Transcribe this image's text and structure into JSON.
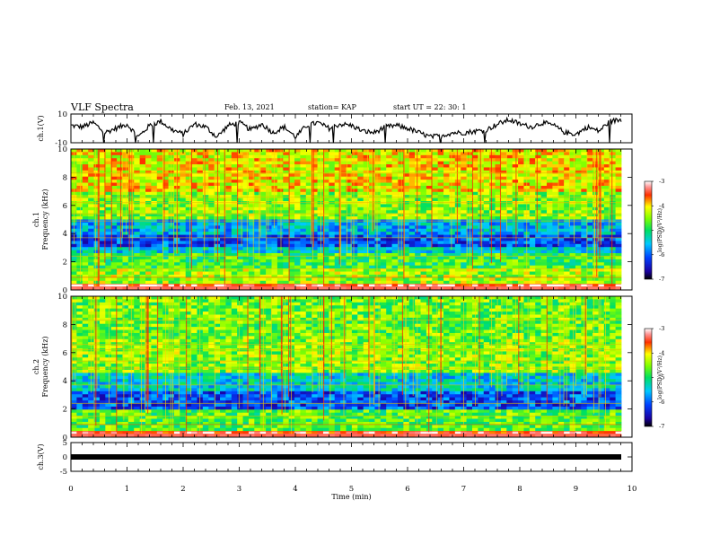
{
  "header": {
    "title": "VLF Spectra",
    "date": "Feb. 13, 2021",
    "station": "station= KAP",
    "start": "start UT = 22: 30: 1"
  },
  "chart_data": [
    {
      "type": "line",
      "panel": "ch1-waveform",
      "ylabel": "ch.1(V)",
      "ylim": [
        -10,
        10
      ],
      "yticks": [
        "10",
        "-10"
      ],
      "xlim": [
        0,
        9.8
      ],
      "series": [
        {
          "x": [
            0,
            0.2,
            0.4,
            0.6,
            0.8,
            1.0,
            1.2,
            1.4,
            1.6,
            1.8,
            2.0,
            2.2,
            2.4,
            2.6,
            2.8,
            3.0,
            3.2,
            3.4,
            3.6,
            3.8,
            4.0,
            4.2,
            4.4,
            4.6,
            4.8,
            5.0,
            5.2,
            5.4,
            5.6,
            5.8,
            6.0,
            6.2,
            6.4,
            6.6,
            6.8,
            7.0,
            7.2,
            7.4,
            7.6,
            7.8,
            8.0,
            8.2,
            8.4,
            8.6,
            8.8,
            9.0,
            9.2,
            9.4,
            9.6,
            9.8
          ],
          "values": [
            2,
            1,
            4,
            -3,
            0,
            3,
            -6,
            2,
            5,
            -1,
            -4,
            3,
            1,
            -6,
            2,
            4,
            -1,
            3,
            -3,
            1,
            -6,
            2,
            4,
            0,
            3,
            2,
            -2,
            -3,
            1,
            2,
            0,
            -3,
            -6,
            -5,
            -3,
            -3,
            -2,
            -1,
            3,
            6,
            3,
            1,
            4,
            2,
            -3,
            -4,
            1,
            -2,
            5,
            6
          ]
        }
      ]
    },
    {
      "type": "heatmap",
      "panel": "ch1-spectrogram",
      "ylabel": "ch.1\nFrequency (kHz)",
      "ylim": [
        0,
        10
      ],
      "yticks": [
        "10",
        "8",
        "6",
        "4",
        "2",
        "0"
      ],
      "xlim": [
        0,
        9.8
      ],
      "colorbar": {
        "label": "log(PSD)(V²/Hz)",
        "range": [
          -7,
          -3
        ],
        "ticks": [
          "-3",
          "-4",
          "-5",
          "-6",
          "-7"
        ]
      },
      "frequency_bands_log_psd": [
        {
          "f": [
            0.0,
            0.5
          ],
          "v": -3.2
        },
        {
          "f": [
            0.5,
            1.5
          ],
          "v": -4.4
        },
        {
          "f": [
            1.5,
            2.5
          ],
          "v": -4.8
        },
        {
          "f": [
            2.5,
            3.0
          ],
          "v": -5.4
        },
        {
          "f": [
            3.0,
            4.0
          ],
          "v": -6.1
        },
        {
          "f": [
            4.0,
            5.0
          ],
          "v": -5.6
        },
        {
          "f": [
            5.0,
            7.0
          ],
          "v": -4.5
        },
        {
          "f": [
            7.0,
            10.0
          ],
          "v": -4.1
        }
      ]
    },
    {
      "type": "heatmap",
      "panel": "ch2-spectrogram",
      "ylabel": "ch.2\nFrequency (kHz)",
      "ylim": [
        0,
        10
      ],
      "yticks": [
        "10",
        "8",
        "6",
        "4",
        "2",
        "0"
      ],
      "xlim": [
        0,
        9.8
      ],
      "colorbar": {
        "label": "log(PSD)(V²/Hz)",
        "range": [
          -7,
          -3
        ],
        "ticks": [
          "-3",
          "-4",
          "-5",
          "-6",
          "-7"
        ]
      },
      "frequency_bands_log_psd": [
        {
          "f": [
            0.0,
            0.5
          ],
          "v": -3.3
        },
        {
          "f": [
            0.5,
            2.0
          ],
          "v": -4.7
        },
        {
          "f": [
            2.0,
            3.2
          ],
          "v": -6.1
        },
        {
          "f": [
            3.2,
            4.5
          ],
          "v": -5.4
        },
        {
          "f": [
            4.5,
            7.0
          ],
          "v": -4.5
        },
        {
          "f": [
            7.0,
            10.0
          ],
          "v": -4.6
        }
      ]
    },
    {
      "type": "line",
      "panel": "ch3-waveform",
      "ylabel": "ch.3(V)",
      "ylim": [
        -5,
        5
      ],
      "yticks": [
        "5",
        "0",
        "-5"
      ],
      "xlim": [
        0,
        9.8
      ],
      "series": [
        {
          "x": [
            0,
            9.8
          ],
          "values": [
            0,
            0
          ]
        }
      ]
    }
  ],
  "xaxis": {
    "label": "Time (min)",
    "range": [
      0,
      10
    ],
    "ticks": [
      "0",
      "1",
      "2",
      "3",
      "4",
      "5",
      "6",
      "7",
      "8",
      "9",
      "10"
    ]
  }
}
